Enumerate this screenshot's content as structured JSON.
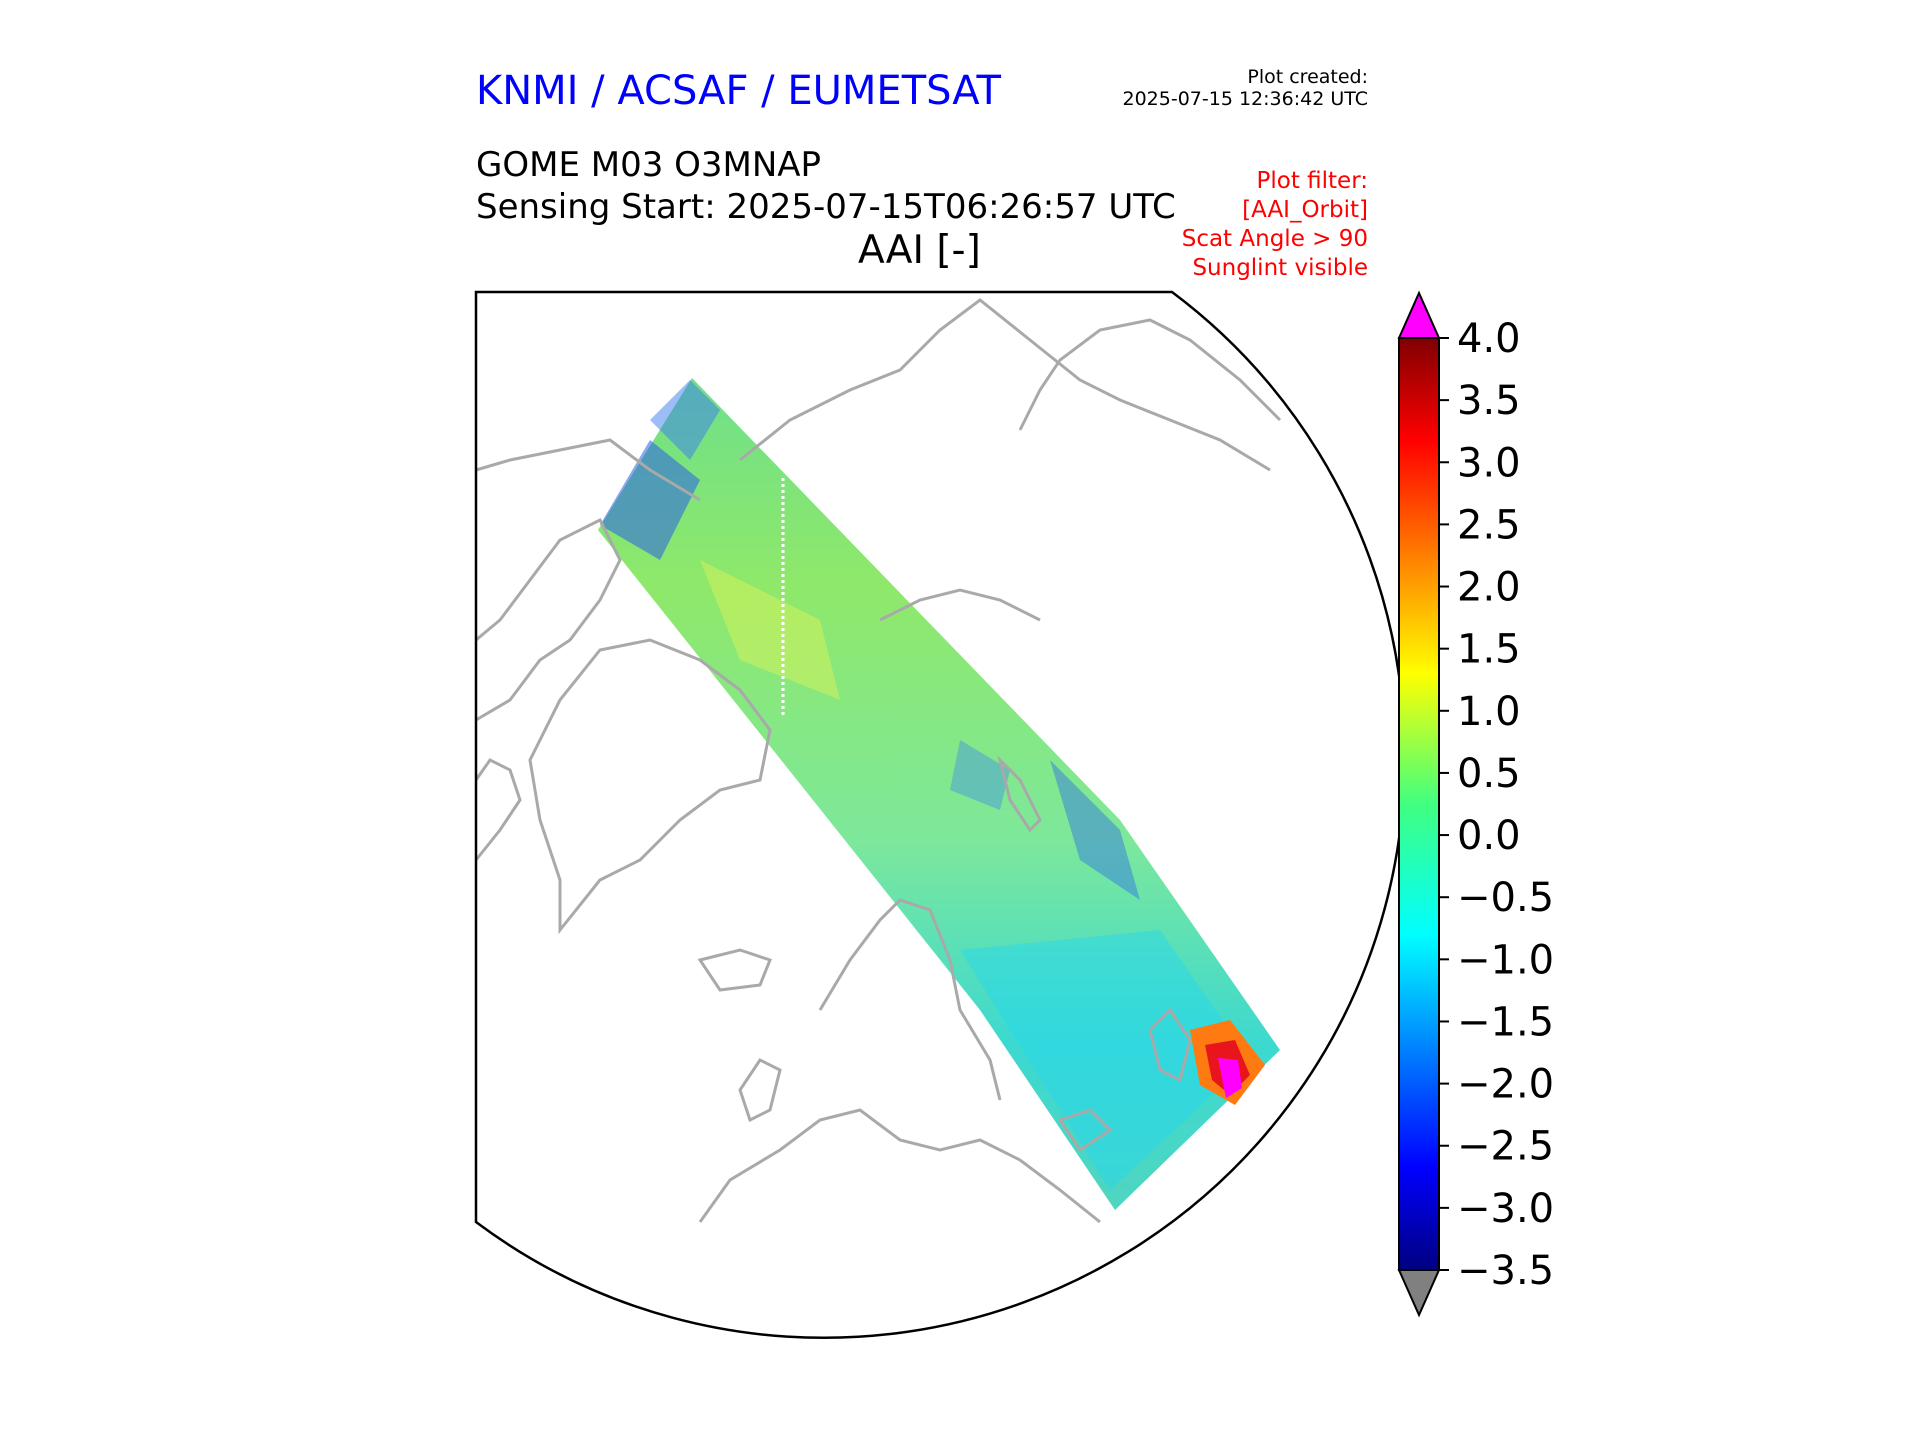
{
  "header": {
    "org_title": "KNMI / ACSAF / EUMETSAT",
    "created_label": "Plot created:",
    "created_time": "2025-07-15 12:36:42 UTC",
    "product": "GOME M03 O3MNAP",
    "sensing_start": "Sensing Start: 2025-07-15T06:26:57 UTC",
    "field_title": "AAI [-]",
    "filters": [
      "Plot filter:",
      "[AAI_Orbit]",
      "Scat Angle > 90",
      "Sunglint visible"
    ]
  },
  "colors": {
    "org_title": "#0000ff",
    "filter_text": "#ff0000",
    "coastline": "#a9a9a9",
    "over_color": "#ff00ff",
    "under_color": "#808080"
  },
  "colorbar": {
    "min": -3.5,
    "max": 4.0,
    "ticks": [
      "4.0",
      "3.5",
      "3.0",
      "2.5",
      "2.0",
      "1.5",
      "1.0",
      "0.5",
      "0.0",
      "−0.5",
      "−1.0",
      "−1.5",
      "−2.0",
      "−2.5",
      "−3.0",
      "−3.5"
    ],
    "colormap": "jet",
    "extend": "both"
  },
  "map": {
    "projection": "polar stereographic (north)",
    "swath_dominant_value": "approximately 0.0 to 1.0",
    "hotspot_value": "up to 4.0+"
  }
}
